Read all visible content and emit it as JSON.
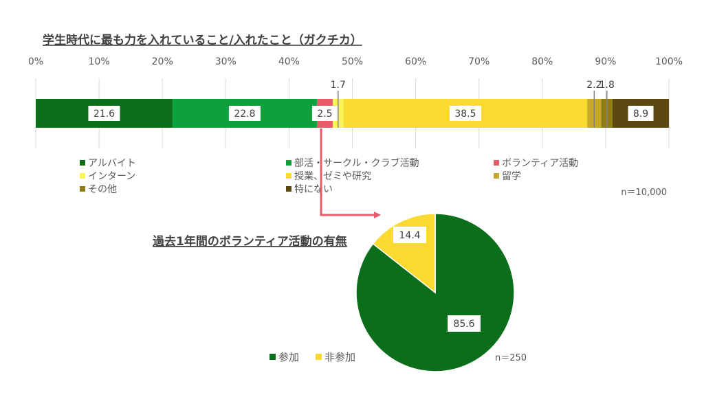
{
  "chart_data": [
    {
      "type": "bar",
      "orientation": "horizontal-stacked-100",
      "title": "学生時代に最も力を入れていること/入れたこと（ガクチカ）",
      "x_ticks": [
        "0%",
        "10%",
        "20%",
        "30%",
        "40%",
        "50%",
        "60%",
        "70%",
        "80%",
        "90%",
        "100%"
      ],
      "xlim": [
        0,
        100
      ],
      "grid": true,
      "note": "n＝10,000",
      "series": [
        {
          "name": "アルバイト",
          "value": 21.6,
          "label": "21.6",
          "color": "#0b6e1a"
        },
        {
          "name": "部活・サークル・クラブ活動",
          "value": 22.8,
          "label": "22.8",
          "color": "#0ea03b"
        },
        {
          "name": "ボランティア活動",
          "value": 2.5,
          "label": "2.5",
          "color": "#e85c6a"
        },
        {
          "name": "インターン",
          "value": 1.7,
          "label": "1.7",
          "color": "#fbf35a"
        },
        {
          "name": "授業、ゼミや研究",
          "value": 38.5,
          "label": "38.5",
          "color": "#fad930"
        },
        {
          "name": "留学",
          "value": 2.2,
          "label": "2.2",
          "color": "#c8a92a"
        },
        {
          "name": "その他",
          "value": 1.8,
          "label": "1.8",
          "color": "#8f7d1a"
        },
        {
          "name": "特にない",
          "value": 8.9,
          "label": "8.9",
          "color": "#5a4810"
        }
      ]
    },
    {
      "type": "pie",
      "title": "過去1年間のボランティア活動の有無",
      "note": "n＝250",
      "slices": [
        {
          "name": "参加",
          "value": 85.6,
          "label": "85.6",
          "color": "#0b6e1a"
        },
        {
          "name": "非参加",
          "value": 14.4,
          "label": "14.4",
          "color": "#fad930"
        }
      ]
    }
  ],
  "connector_color": "#e85c6a"
}
